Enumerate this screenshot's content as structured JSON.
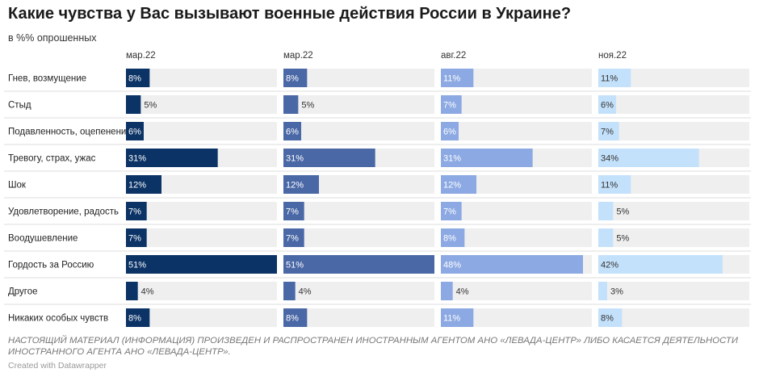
{
  "title": "Какие чувства у Вас вызывают военные действия России в Украине?",
  "subtitle": "в %% опрошенных",
  "footnote": "НАСТОЯЩИЙ МАТЕРИАЛ (ИНФОРМАЦИЯ) ПРОИЗВЕДЕН И РАСПРОСТРАНЕН ИНОСТРАННЫМ АГЕНТОМ АНО «ЛЕВАДА-ЦЕНТР» ЛИБО КАСАЕТСЯ ДЕЯТЕЛЬНОСТИ ИНОСТРАННОГО АГЕНТА АНО «ЛЕВАДА-ЦЕНТР».",
  "credit": "Created with Datawrapper",
  "chart_data": {
    "type": "bar",
    "orientation": "horizontal",
    "title": "Какие чувства у Вас вызывают военные действия России в Украине?",
    "unit": "%",
    "xlim": [
      0,
      51
    ],
    "categories": [
      "Гнев, возмущение",
      "Стыд",
      "Подавленность, оцепенение",
      "Тревогу, страх, ужас",
      "Шок",
      "Удовлетворение, радость",
      "Воодушевление",
      "Гордость за Россию",
      "Другое",
      "Никаких особых чувств"
    ],
    "series": [
      {
        "name": "мар.22",
        "color": "#0b3366",
        "label_color_inside": "#ffffff",
        "values": [
          8,
          5,
          6,
          31,
          12,
          7,
          7,
          51,
          4,
          8
        ]
      },
      {
        "name": "мар.22",
        "color": "#4a68a6",
        "label_color_inside": "#ffffff",
        "values": [
          8,
          5,
          6,
          31,
          12,
          7,
          7,
          51,
          4,
          8
        ]
      },
      {
        "name": "авг.22",
        "color": "#8ca9e3",
        "label_color_inside": "#ffffff",
        "values": [
          11,
          7,
          6,
          31,
          12,
          7,
          8,
          48,
          4,
          11
        ]
      },
      {
        "name": "ноя.22",
        "color": "#c4e1fb",
        "label_color_inside": "#333333",
        "values": [
          11,
          6,
          7,
          34,
          11,
          5,
          5,
          42,
          3,
          8
        ]
      }
    ],
    "background_bar_color": "#efefef"
  }
}
